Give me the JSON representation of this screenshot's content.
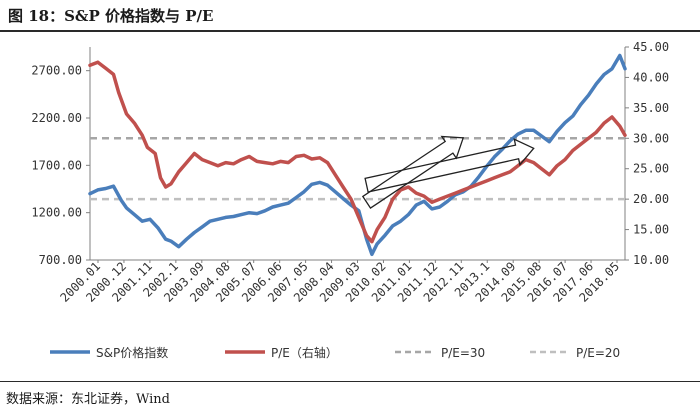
{
  "figure": {
    "title": "图 18：S&P 价格指数与 P/E",
    "source": "数据来源：东北证券，Wind"
  },
  "chart_data": {
    "type": "line",
    "title": "",
    "xlabel": "",
    "ylabel": "",
    "x_tick_labels": [
      "2000.01",
      "2000.12",
      "2001.11",
      "2002.1",
      "2003.09",
      "2004.08",
      "2005.07",
      "2006.06",
      "2007.05",
      "2008.04",
      "2009.03",
      "2010.02",
      "2011.01",
      "2011.12",
      "2012.11",
      "2013.1",
      "2014.09",
      "2015.08",
      "2016.07",
      "2017.06",
      "2018.05"
    ],
    "y_left": {
      "ylim": [
        700,
        2950
      ],
      "ticks": [
        "700.00",
        "1200.00",
        "1700.00",
        "2200.00",
        "2700.00"
      ]
    },
    "y_right": {
      "ylim": [
        10,
        45
      ],
      "ticks": [
        "10.00",
        "15.00",
        "20.00",
        "25.00",
        "30.00",
        "35.00",
        "40.00",
        "45.00"
      ]
    },
    "grid": false,
    "legend_position": "bottom",
    "series": [
      {
        "name": "S&P价格指数",
        "axis": "left",
        "color": "#4a7ebb",
        "values": [
          [
            0,
            1400
          ],
          [
            3,
            1440
          ],
          [
            6,
            1455
          ],
          [
            9,
            1480
          ],
          [
            12,
            1330
          ],
          [
            14,
            1250
          ],
          [
            17,
            1180
          ],
          [
            20,
            1110
          ],
          [
            23,
            1130
          ],
          [
            26,
            1040
          ],
          [
            29,
            920
          ],
          [
            31,
            900
          ],
          [
            34,
            840
          ],
          [
            37,
            920
          ],
          [
            40,
            990
          ],
          [
            43,
            1050
          ],
          [
            46,
            1110
          ],
          [
            49,
            1130
          ],
          [
            52,
            1150
          ],
          [
            55,
            1160
          ],
          [
            58,
            1180
          ],
          [
            61,
            1200
          ],
          [
            64,
            1190
          ],
          [
            67,
            1220
          ],
          [
            70,
            1260
          ],
          [
            73,
            1280
          ],
          [
            76,
            1300
          ],
          [
            79,
            1360
          ],
          [
            82,
            1420
          ],
          [
            85,
            1500
          ],
          [
            88,
            1520
          ],
          [
            91,
            1490
          ],
          [
            94,
            1420
          ],
          [
            97,
            1350
          ],
          [
            100,
            1280
          ],
          [
            103,
            1220
          ],
          [
            106,
            920
          ],
          [
            108,
            760
          ],
          [
            110,
            870
          ],
          [
            113,
            960
          ],
          [
            116,
            1060
          ],
          [
            119,
            1110
          ],
          [
            122,
            1180
          ],
          [
            125,
            1280
          ],
          [
            128,
            1320
          ],
          [
            131,
            1240
          ],
          [
            134,
            1260
          ],
          [
            137,
            1320
          ],
          [
            140,
            1390
          ],
          [
            143,
            1420
          ],
          [
            146,
            1480
          ],
          [
            149,
            1580
          ],
          [
            152,
            1690
          ],
          [
            155,
            1790
          ],
          [
            158,
            1870
          ],
          [
            161,
            1960
          ],
          [
            164,
            2030
          ],
          [
            167,
            2070
          ],
          [
            170,
            2070
          ],
          [
            173,
            2010
          ],
          [
            176,
            1950
          ],
          [
            179,
            2060
          ],
          [
            182,
            2150
          ],
          [
            185,
            2220
          ],
          [
            188,
            2340
          ],
          [
            191,
            2440
          ],
          [
            194,
            2560
          ],
          [
            197,
            2660
          ],
          [
            200,
            2720
          ],
          [
            203,
            2860
          ],
          [
            205,
            2720
          ]
        ]
      },
      {
        "name": "P/E（右轴）",
        "axis": "right",
        "color": "#c0504d",
        "values": [
          [
            0,
            42.0
          ],
          [
            3,
            42.5
          ],
          [
            6,
            41.5
          ],
          [
            9,
            40.5
          ],
          [
            11,
            37.5
          ],
          [
            14,
            34.0
          ],
          [
            17,
            32.5
          ],
          [
            20,
            30.5
          ],
          [
            22,
            28.5
          ],
          [
            25,
            27.5
          ],
          [
            27,
            23.5
          ],
          [
            29,
            22.0
          ],
          [
            31,
            22.5
          ],
          [
            34,
            24.5
          ],
          [
            37,
            26.0
          ],
          [
            40,
            27.5
          ],
          [
            43,
            26.5
          ],
          [
            46,
            26.0
          ],
          [
            49,
            25.5
          ],
          [
            52,
            26.0
          ],
          [
            55,
            25.8
          ],
          [
            58,
            26.5
          ],
          [
            61,
            27.0
          ],
          [
            64,
            26.2
          ],
          [
            67,
            26.0
          ],
          [
            70,
            25.8
          ],
          [
            73,
            26.2
          ],
          [
            76,
            26.0
          ],
          [
            79,
            27.0
          ],
          [
            82,
            27.2
          ],
          [
            85,
            26.6
          ],
          [
            88,
            26.8
          ],
          [
            91,
            26.0
          ],
          [
            94,
            24.0
          ],
          [
            97,
            22.0
          ],
          [
            100,
            20.0
          ],
          [
            103,
            17.0
          ],
          [
            106,
            14.0
          ],
          [
            108,
            13.0
          ],
          [
            110,
            15.0
          ],
          [
            113,
            17.0
          ],
          [
            116,
            20.0
          ],
          [
            119,
            21.5
          ],
          [
            122,
            22.0
          ],
          [
            125,
            21.0
          ],
          [
            128,
            20.5
          ],
          [
            131,
            19.5
          ],
          [
            134,
            20.0
          ],
          [
            137,
            20.5
          ],
          [
            140,
            21.0
          ],
          [
            143,
            21.5
          ],
          [
            146,
            22.0
          ],
          [
            149,
            22.5
          ],
          [
            152,
            23.0
          ],
          [
            155,
            23.5
          ],
          [
            158,
            24.0
          ],
          [
            161,
            24.5
          ],
          [
            164,
            25.5
          ],
          [
            167,
            26.5
          ],
          [
            170,
            26.0
          ],
          [
            173,
            25.0
          ],
          [
            176,
            24.0
          ],
          [
            179,
            25.5
          ],
          [
            182,
            26.5
          ],
          [
            185,
            28.0
          ],
          [
            188,
            29.0
          ],
          [
            191,
            30.0
          ],
          [
            194,
            31.0
          ],
          [
            197,
            32.5
          ],
          [
            200,
            33.5
          ],
          [
            203,
            32.0
          ],
          [
            205,
            30.5
          ]
        ]
      },
      {
        "name": "P/E=30",
        "axis": "right",
        "color": "#a6a6a6",
        "dashed": true,
        "constant": 30
      },
      {
        "name": "P/E=20",
        "axis": "right",
        "color": "#bfbfbf",
        "dashed": true,
        "constant": 20
      }
    ],
    "annotations": [
      {
        "type": "arrow",
        "from": [
          106,
          1310
        ],
        "to": [
          143,
          1990
        ]
      },
      {
        "type": "arrow",
        "from": [
          106,
          1490
        ],
        "to": [
          170,
          1880
        ]
      }
    ]
  }
}
